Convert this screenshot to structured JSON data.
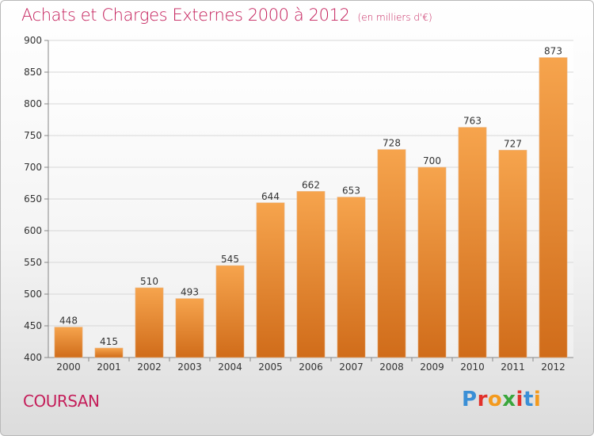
{
  "header": {
    "title": "Achats et Charges Externes 2000 à 2012",
    "subtitle": "(en milliers d'€)"
  },
  "footer": {
    "commune": "COURSAN",
    "brand_letters": [
      "P",
      "r",
      "o",
      "x",
      "i",
      "t",
      "i"
    ]
  },
  "colors": {
    "title": "#c41e5a",
    "bar_top": "#f6a44d",
    "bar_bottom": "#d06c1a",
    "brand": [
      "#3a8fd6",
      "#e2312b",
      "#f39a1e",
      "#3aa63c",
      "#e2312b",
      "#3a8fd6",
      "#f39a1e"
    ]
  },
  "chart_data": {
    "type": "bar",
    "categories": [
      "2000",
      "2001",
      "2002",
      "2003",
      "2004",
      "2005",
      "2006",
      "2007",
      "2008",
      "2009",
      "2010",
      "2011",
      "2012"
    ],
    "values": [
      448,
      415,
      510,
      493,
      545,
      644,
      662,
      653,
      728,
      700,
      763,
      727,
      873
    ],
    "title": "Achats et Charges Externes 2000 à 2012",
    "subtitle": "(en milliers d'€)",
    "xlabel": "",
    "ylabel": "",
    "ylim": [
      400,
      900
    ],
    "yticks": [
      400,
      450,
      500,
      550,
      600,
      650,
      700,
      750,
      800,
      850,
      900
    ],
    "grid": true,
    "data_labels": true
  }
}
